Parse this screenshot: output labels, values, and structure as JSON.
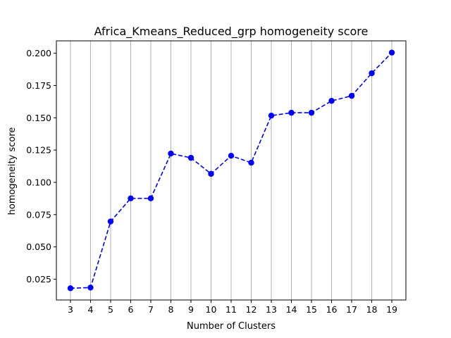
{
  "chart_data": {
    "type": "line",
    "title": "Africa_Kmeans_Reduced_grp homogeneity score",
    "xlabel": "Number of Clusters",
    "ylabel": "homogeneity score",
    "x": [
      3,
      4,
      5,
      6,
      7,
      8,
      9,
      10,
      11,
      12,
      13,
      14,
      15,
      16,
      17,
      18,
      19
    ],
    "series": [
      {
        "values": [
          0.018,
          0.0185,
          0.0697,
          0.0876,
          0.0876,
          0.1223,
          0.119,
          0.1066,
          0.1206,
          0.1152,
          0.1517,
          0.1539,
          0.1539,
          0.1631,
          0.167,
          0.1845,
          0.2005
        ],
        "color": "#0000ff",
        "line_style": "dashed",
        "marker": "circle"
      }
    ],
    "xlim": [
      2.3,
      19.7
    ],
    "ylim": [
      0.0089,
      0.2096
    ],
    "x_ticks": [
      "3",
      "4",
      "5",
      "6",
      "7",
      "8",
      "9",
      "10",
      "11",
      "12",
      "13",
      "14",
      "15",
      "16",
      "17",
      "18",
      "19"
    ],
    "y_ticks": [
      "0.025",
      "0.050",
      "0.075",
      "0.100",
      "0.125",
      "0.150",
      "0.175",
      "0.200"
    ],
    "grid": "vertical",
    "legend": "none"
  }
}
